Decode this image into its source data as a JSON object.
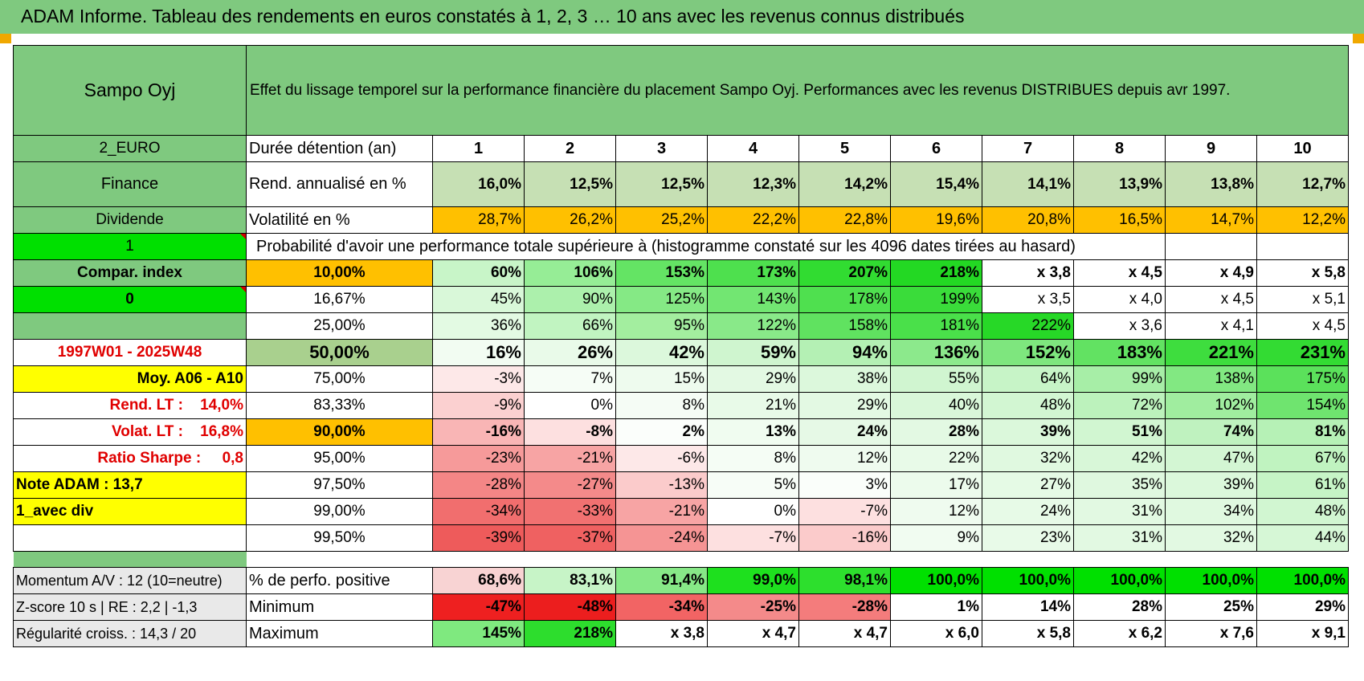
{
  "title": "ADAM Informe. Tableau des rendements en euros constatés à 1, 2, 3 … 10 ans avec les revenus connus distribués",
  "header": {
    "asset": "Sampo Oyj",
    "description": "Effet du lissage temporel sur la performance financière du placement Sampo Oyj. Performances avec les revenus DISTRIBUES depuis avr 1997."
  },
  "left": {
    "currency": "2_EURO",
    "sector": "Finance",
    "type": "Dividende",
    "input1": "1",
    "compar": "Compar. index",
    "input2": "0",
    "period": "1997W01 - 2025W48",
    "moy": "Moy. A06 - A10",
    "rend_lt": "Rend. LT :    14,0%",
    "volat_lt": "Volat. LT :    16,8%",
    "sharpe": "Ratio Sharpe :     0,8",
    "note": "Note ADAM : 13,7",
    "div": "1_avec div",
    "momentum": "Momentum A/V : 12 (10=neutre)",
    "zscore": "Z-score 10 s | RE : 2,2 | -1,3",
    "regularite": "Régularité croiss. : 14,3 / 20"
  },
  "labels": {
    "duree": "Durée détention (an)",
    "rend": "Rend. annualisé en %",
    "vol": "Volatilité en %",
    "proba": "Probabilité d'avoir une performance totale supérieure à (histogramme constaté sur les 4096 dates tirées au hasard)",
    "positive": "% de perfo. positive",
    "minimum": "Minimum",
    "maximum": "Maximum"
  },
  "years": [
    "1",
    "2",
    "3",
    "4",
    "5",
    "6",
    "7",
    "8",
    "9",
    "10"
  ],
  "rend": [
    "16,0%",
    "12,5%",
    "12,5%",
    "12,3%",
    "14,2%",
    "15,4%",
    "14,1%",
    "13,9%",
    "13,8%",
    "12,7%"
  ],
  "vol": [
    "28,7%",
    "26,2%",
    "25,2%",
    "22,2%",
    "22,8%",
    "19,6%",
    "20,8%",
    "16,5%",
    "14,7%",
    "12,2%"
  ],
  "prob": [
    {
      "p": "10,00%",
      "v": [
        "60%",
        "106%",
        "153%",
        "173%",
        "207%",
        "218%",
        "x 3,8",
        "x 4,5",
        "x 4,9",
        "x 5,8"
      ]
    },
    {
      "p": "16,67%",
      "v": [
        "45%",
        "90%",
        "125%",
        "143%",
        "178%",
        "199%",
        "x 3,5",
        "x 4,0",
        "x 4,5",
        "x 5,1"
      ]
    },
    {
      "p": "25,00%",
      "v": [
        "36%",
        "66%",
        "95%",
        "122%",
        "158%",
        "181%",
        "222%",
        "x 3,6",
        "x 4,1",
        "x 4,5"
      ]
    },
    {
      "p": "50,00%",
      "v": [
        "16%",
        "26%",
        "42%",
        "59%",
        "94%",
        "136%",
        "152%",
        "183%",
        "221%",
        "231%"
      ]
    },
    {
      "p": "75,00%",
      "v": [
        "-3%",
        "7%",
        "15%",
        "29%",
        "38%",
        "55%",
        "64%",
        "99%",
        "138%",
        "175%"
      ]
    },
    {
      "p": "83,33%",
      "v": [
        "-9%",
        "0%",
        "8%",
        "21%",
        "29%",
        "40%",
        "48%",
        "72%",
        "102%",
        "154%"
      ]
    },
    {
      "p": "90,00%",
      "v": [
        "-16%",
        "-8%",
        "2%",
        "13%",
        "24%",
        "28%",
        "39%",
        "51%",
        "74%",
        "81%"
      ]
    },
    {
      "p": "95,00%",
      "v": [
        "-23%",
        "-21%",
        "-6%",
        "8%",
        "12%",
        "22%",
        "32%",
        "42%",
        "47%",
        "67%"
      ]
    },
    {
      "p": "97,50%",
      "v": [
        "-28%",
        "-27%",
        "-13%",
        "5%",
        "3%",
        "17%",
        "27%",
        "35%",
        "39%",
        "61%"
      ]
    },
    {
      "p": "99,00%",
      "v": [
        "-34%",
        "-33%",
        "-21%",
        "0%",
        "-7%",
        "12%",
        "24%",
        "31%",
        "34%",
        "48%"
      ]
    },
    {
      "p": "99,50%",
      "v": [
        "-39%",
        "-37%",
        "-24%",
        "-7%",
        "-16%",
        "9%",
        "23%",
        "31%",
        "32%",
        "44%"
      ]
    }
  ],
  "positive": [
    "68,6%",
    "83,1%",
    "91,4%",
    "99,0%",
    "98,1%",
    "100,0%",
    "100,0%",
    "100,0%",
    "100,0%",
    "100,0%"
  ],
  "minimum": [
    "-47%",
    "-48%",
    "-34%",
    "-25%",
    "-28%",
    "1%",
    "14%",
    "28%",
    "25%",
    "29%"
  ],
  "maximum": [
    "145%",
    "218%",
    "x 3,8",
    "x 4,7",
    "x 4,7",
    "x 6,0",
    "x 5,8",
    "x 6,2",
    "x 7,6",
    "x 9,1"
  ],
  "colors": {
    "header_green": "#7fc97f",
    "bright_green": "#00e000",
    "orange": "#ffc000",
    "yellow": "#ffff00",
    "red_text": "#e00000"
  },
  "cell_colors": {
    "rend": [
      "#c6e0b4",
      "#c6e0b4",
      "#c6e0b4",
      "#c6e0b4",
      "#c6e0b4",
      "#c6e0b4",
      "#c6e0b4",
      "#c6e0b4",
      "#c6e0b4",
      "#c6e0b4"
    ],
    "prob": [
      [
        "#c8f5c8",
        "#96ed96",
        "#64e464",
        "#4ee04e",
        "#31dc31",
        "#23d823",
        "#ffffff",
        "#ffffff",
        "#ffffff",
        "#ffffff"
      ],
      [
        "#d9f8d9",
        "#acf0ac",
        "#85e985",
        "#72e672",
        "#4fe04f",
        "#3adc3a",
        "#ffffff",
        "#ffffff",
        "#ffffff",
        "#ffffff"
      ],
      [
        "#e3fae3",
        "#c1f4c1",
        "#a3ee9f",
        "#89e989",
        "#60e260",
        "#4ae04a",
        "#27d827",
        "#ffffff",
        "#ffffff",
        "#ffffff"
      ],
      [
        "#f2fcf2",
        "#e9fae9",
        "#dcf8dc",
        "#cff5cf",
        "#b4f0b4",
        "#8ce98c",
        "#7ee67e",
        "#62e262",
        "#3edd3e",
        "#33db33"
      ],
      [
        "#fde8e8",
        "#f6fdf6",
        "#eefbee",
        "#e3f9e3",
        "#dcf8dc",
        "#d0f5d0",
        "#c7f4c7",
        "#a7eea7",
        "#82e882",
        "#5be15b"
      ],
      [
        "#fbd0d0",
        "#ffffff",
        "#f5fcf5",
        "#e8fae8",
        "#e3f9e3",
        "#d9f7d9",
        "#d2f6d2",
        "#bcf2bc",
        "#a0ed9f",
        "#6fe46f"
      ],
      [
        "#f9b5b5",
        "#fde0e0",
        "#fbfefb",
        "#f0fcf0",
        "#e6f9e6",
        "#e3f9e3",
        "#dbf8db",
        "#d1f6d1",
        "#bff2bf",
        "#b6f1b6"
      ],
      [
        "#f69a9a",
        "#f7a4a4",
        "#fde8e8",
        "#f5fdf5",
        "#effbef",
        "#e8fae8",
        "#e0f9e0",
        "#d8f7d8",
        "#d3f6d3",
        "#c0f3c0"
      ],
      [
        "#f48686",
        "#f48a8a",
        "#fbcbcb",
        "#f7fdf7",
        "#fafefa",
        "#ecfbec",
        "#e5fae5",
        "#dff8df",
        "#dbf8db",
        "#c6f4c6"
      ],
      [
        "#f16e6e",
        "#f17171",
        "#f7a4a4",
        "#ffffff",
        "#fde0e0",
        "#effbef",
        "#e7fae7",
        "#e2f9e2",
        "#e0f9e0",
        "#d1f6d1"
      ],
      [
        "#ee5b5b",
        "#ef6161",
        "#f59494",
        "#fde0e0",
        "#fbcbcb",
        "#f1fcf1",
        "#e8fae8",
        "#e2f9e2",
        "#e2f9e2",
        "#d6f7d6"
      ]
    ],
    "positive": [
      "#f8d3d3",
      "#c7f4c7",
      "#87e887",
      "#1ee01e",
      "#2ddf2d",
      "#00e000",
      "#00e000",
      "#00e000",
      "#00e000",
      "#00e000"
    ],
    "minimum": [
      "#ee2020",
      "#ec1e1e",
      "#f26464",
      "#f48a8a",
      "#f47c7c",
      "#ffffff",
      "#ffffff",
      "#ffffff",
      "#ffffff",
      "#ffffff"
    ],
    "maximum": [
      "#7fe97f",
      "#2ddd2d",
      "#ffffff",
      "#ffffff",
      "#ffffff",
      "#ffffff",
      "#ffffff",
      "#ffffff",
      "#ffffff",
      "#ffffff"
    ]
  }
}
